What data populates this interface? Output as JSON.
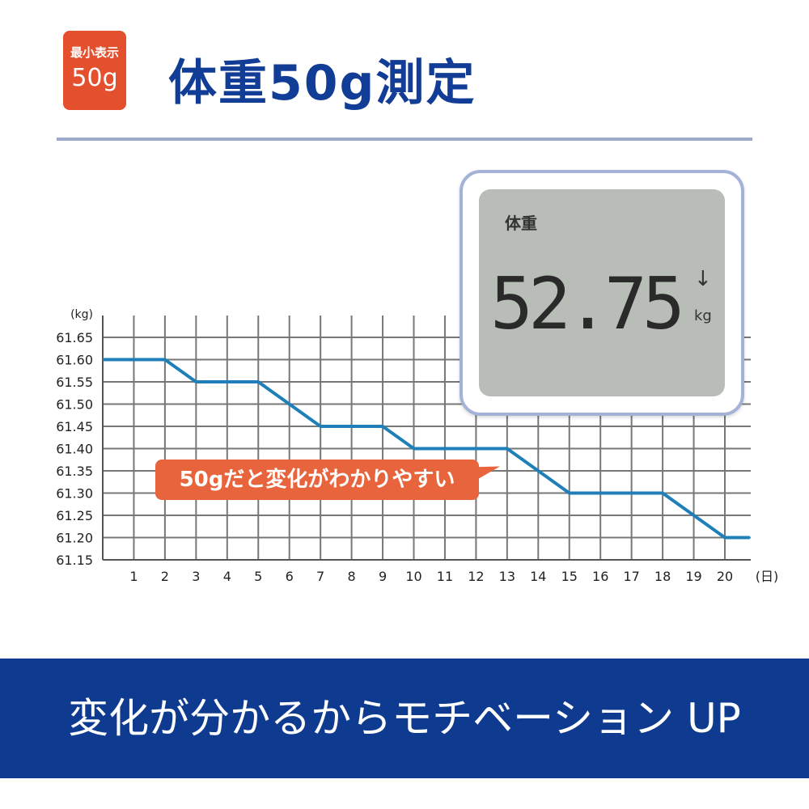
{
  "badge": {
    "line1": "最小表示",
    "line2": "50g",
    "color": "#e4502e"
  },
  "title": "体重50g測定",
  "display": {
    "label": "体重",
    "value": "52.75",
    "arrow": "↓",
    "unit": "kg"
  },
  "callout": "50gだと変化がわかりやすい",
  "banner": "変化が分かるからモチベーション UP",
  "chart_data": {
    "type": "line",
    "ylabel": "(kg)",
    "xlabel": "(日)",
    "ylim": [
      61.15,
      61.65
    ],
    "yticks": [
      "61.65",
      "61.60",
      "61.55",
      "61.50",
      "61.45",
      "61.40",
      "61.35",
      "61.30",
      "61.25",
      "61.20",
      "61.15"
    ],
    "xticks": [
      "1",
      "2",
      "3",
      "4",
      "5",
      "6",
      "7",
      "8",
      "9",
      "10",
      "11",
      "12",
      "13",
      "14",
      "15",
      "16",
      "17",
      "18",
      "19",
      "20"
    ],
    "grid": true,
    "line_color": "#1f7fb8",
    "x": [
      0,
      2,
      3,
      5,
      7,
      9,
      10,
      13,
      15,
      18,
      20,
      20.8
    ],
    "y": [
      61.6,
      61.6,
      61.55,
      61.55,
      61.45,
      61.45,
      61.4,
      61.4,
      61.3,
      61.3,
      61.2,
      61.2
    ]
  }
}
